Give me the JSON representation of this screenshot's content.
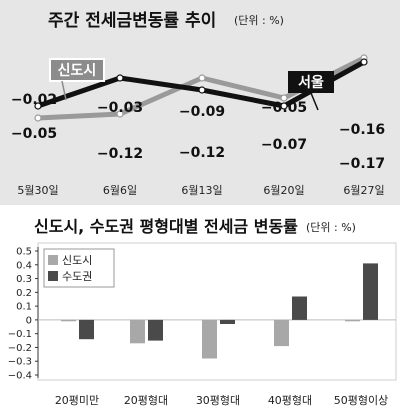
{
  "chart_data": [
    {
      "type": "line",
      "title": "주간 전세금변동률 추이",
      "unit": "(단위 : %)",
      "x": [
        "5월30일",
        "6월6일",
        "6월13일",
        "6월20일",
        "6월27일"
      ],
      "series": [
        {
          "name": "신도시",
          "values": [
            -0.02,
            -0.03,
            -0.12,
            -0.07,
            -0.17
          ],
          "color": "#9a9a9a"
        },
        {
          "name": "서울",
          "values": [
            -0.05,
            -0.12,
            -0.09,
            -0.05,
            -0.16
          ],
          "color": "#111111"
        }
      ],
      "value_labels": {
        "신도시": [
          "-0.02",
          "-0.03",
          "-0.12",
          "-0.07",
          "-0.17"
        ],
        "서울": [
          "-0.05",
          "-0.12",
          "-0.09",
          "-0.05",
          "-0.16"
        ]
      },
      "ylim": [
        -0.2,
        0.0
      ],
      "grid": false
    },
    {
      "type": "bar",
      "title": "신도시, 수도권 평형대별 전세금 변동률",
      "unit": "(단위 : %)",
      "categories": [
        "20평미만",
        "20평형대",
        "30평형대",
        "40평형대",
        "50평형이상"
      ],
      "series": [
        {
          "name": "신도시",
          "values": [
            -0.01,
            -0.17,
            -0.28,
            -0.19,
            -0.01
          ],
          "color": "#a8a8a8"
        },
        {
          "name": "수도권",
          "values": [
            -0.14,
            -0.15,
            -0.03,
            0.17,
            0.41
          ],
          "color": "#4a4a4a"
        }
      ],
      "yticks": [
        "0.5",
        "0.4",
        "0.3",
        "0.2",
        "0.1",
        "0",
        "-0.1",
        "-0.2",
        "-0.3",
        "-0.4"
      ],
      "ylim": [
        -0.4,
        0.5
      ],
      "legend": "top-left",
      "grid": false
    }
  ]
}
